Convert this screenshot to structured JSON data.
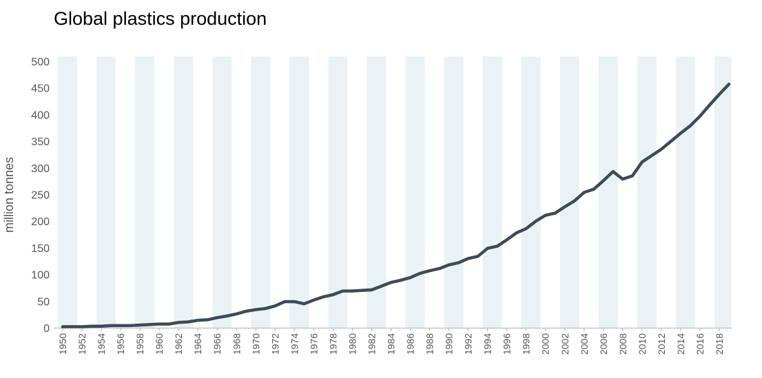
{
  "chart_data": {
    "type": "line",
    "title": "Global plastics production",
    "xlabel": "",
    "ylabel": "million tonnes",
    "xlim": [
      1950,
      2019
    ],
    "ylim": [
      0,
      500
    ],
    "yticks": [
      0,
      50,
      100,
      150,
      200,
      250,
      300,
      350,
      400,
      450,
      500
    ],
    "xticks": [
      1950,
      1952,
      1954,
      1956,
      1958,
      1960,
      1962,
      1964,
      1966,
      1968,
      1970,
      1972,
      1974,
      1976,
      1978,
      1980,
      1982,
      1984,
      1986,
      1988,
      1990,
      1992,
      1994,
      1996,
      1998,
      2000,
      2002,
      2004,
      2006,
      2008,
      2010,
      2012,
      2014,
      2016,
      2018
    ],
    "grid": false,
    "band_color": "#eaf2f5",
    "line_color": "#3d4b57",
    "series": [
      {
        "x": [
          1950,
          1951,
          1952,
          1953,
          1954,
          1955,
          1956,
          1957,
          1958,
          1959,
          1960,
          1961,
          1962,
          1963,
          1964,
          1965,
          1966,
          1967,
          1968,
          1969,
          1970,
          1971,
          1972,
          1973,
          1974,
          1975,
          1976,
          1977,
          1978,
          1979,
          1980,
          1981,
          1982,
          1983,
          1984,
          1985,
          1986,
          1987,
          1988,
          1989,
          1990,
          1991,
          1992,
          1993,
          1994,
          1995,
          1996,
          1997,
          1998,
          1999,
          2000,
          2001,
          2002,
          2003,
          2004,
          2005,
          2006,
          2007,
          2008,
          2009,
          2010,
          2011,
          2012,
          2013,
          2014,
          2015,
          2016,
          2017,
          2018,
          2019
        ],
        "values": [
          2,
          2,
          2,
          3,
          3,
          4,
          4,
          4,
          5,
          6,
          7,
          7,
          10,
          11,
          14,
          15,
          19,
          22,
          26,
          31,
          34,
          36,
          41,
          49,
          49,
          45,
          52,
          58,
          62,
          69,
          69,
          70,
          71,
          78,
          85,
          89,
          94,
          102,
          107,
          111,
          118,
          122,
          130,
          134,
          149,
          153,
          165,
          178,
          186,
          200,
          211,
          215,
          227,
          238,
          254,
          260,
          276,
          293,
          279,
          285,
          311,
          323,
          335,
          350,
          365,
          379,
          397,
          418,
          438,
          457
        ]
      }
    ]
  }
}
